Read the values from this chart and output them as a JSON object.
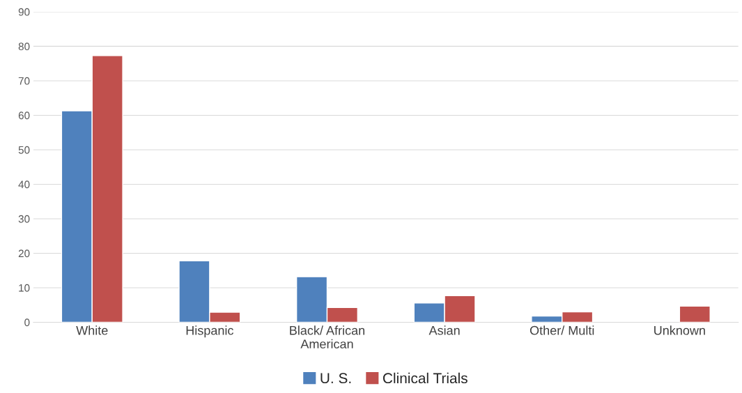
{
  "chart_data": {
    "type": "bar",
    "categories": [
      "White",
      "Hispanic",
      "Black/ African American",
      "Asian",
      "Other/ Multi",
      "Unknown"
    ],
    "series": [
      {
        "name": "U. S.",
        "color": "#4f81bd",
        "values": [
          61.3,
          17.8,
          13.2,
          5.6,
          1.8,
          null
        ]
      },
      {
        "name": "Clinical Trials",
        "color": "#c0504d",
        "values": [
          77.3,
          2.9,
          4.3,
          7.7,
          3.0,
          4.7
        ]
      }
    ],
    "ylim": [
      0,
      90
    ],
    "yticks": [
      0,
      10,
      20,
      30,
      40,
      50,
      60,
      70,
      80,
      90
    ],
    "grid": "y",
    "legend": "bottom"
  }
}
